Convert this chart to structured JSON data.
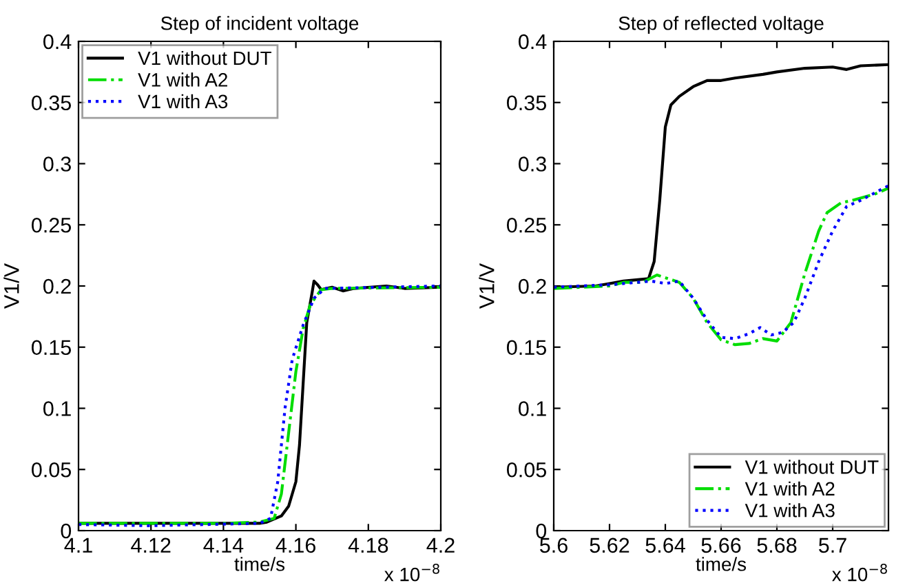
{
  "chart_data": [
    {
      "type": "line",
      "title": "Step of incident voltage",
      "xlabel": "time/s",
      "ylabel": "V1/V",
      "xlim": [
        4.1,
        4.2
      ],
      "xticks": [
        4.1,
        4.12,
        4.14,
        4.16,
        4.18,
        4.2
      ],
      "ylim": [
        0,
        0.4
      ],
      "yticks": [
        0,
        0.05,
        0.1,
        0.15,
        0.2,
        0.25,
        0.3,
        0.35,
        0.4
      ],
      "grid": false,
      "legend": "top left",
      "annotations": [
        "x 10$^{−8}$"
      ],
      "series": [
        {
          "name": "V1 without DUT",
          "color": "#000000",
          "line_style": "solid",
          "x": [
            4.1,
            4.12,
            4.14,
            4.15,
            4.152,
            4.156,
            4.158,
            4.16,
            4.161,
            4.162,
            4.163,
            4.1645,
            4.165,
            4.166,
            4.167,
            4.17,
            4.173,
            4.176,
            4.185,
            4.19,
            4.2
          ],
          "values": [
            0.006,
            0.006,
            0.006,
            0.006,
            0.007,
            0.012,
            0.02,
            0.04,
            0.07,
            0.12,
            0.17,
            0.195,
            0.204,
            0.201,
            0.197,
            0.199,
            0.196,
            0.198,
            0.2,
            0.198,
            0.199
          ]
        },
        {
          "name": "V1 with A2",
          "color": "#00dd00",
          "line_style": "dashdot",
          "x": [
            4.1,
            4.12,
            4.14,
            4.15,
            4.154,
            4.156,
            4.158,
            4.16,
            4.162,
            4.164,
            4.167,
            4.17,
            4.2
          ],
          "values": [
            0.006,
            0.006,
            0.006,
            0.007,
            0.01,
            0.03,
            0.08,
            0.13,
            0.165,
            0.185,
            0.197,
            0.198,
            0.199
          ]
        },
        {
          "name": "V1 with A3",
          "color": "#0000ff",
          "line_style": "dotted",
          "x": [
            4.1,
            4.12,
            4.15,
            4.153,
            4.155,
            4.157,
            4.159,
            4.162,
            4.165,
            4.168,
            4.2
          ],
          "values": [
            0.005,
            0.004,
            0.006,
            0.01,
            0.04,
            0.1,
            0.14,
            0.168,
            0.19,
            0.198,
            0.2
          ]
        }
      ]
    },
    {
      "type": "line",
      "title": "Step of reflected voltage",
      "xlabel": "time/s",
      "ylabel": "V1/V",
      "xlim": [
        5.6,
        5.72
      ],
      "xticks": [
        5.6,
        5.62,
        5.64,
        5.66,
        5.68,
        5.7
      ],
      "ylim": [
        0,
        0.4
      ],
      "yticks": [
        0,
        0.05,
        0.1,
        0.15,
        0.2,
        0.25,
        0.3,
        0.35,
        0.4
      ],
      "grid": false,
      "legend": "lower right",
      "annotations": [
        "x 10$^{−8}$"
      ],
      "series": [
        {
          "name": "V1 without DUT",
          "color": "#000000",
          "line_style": "solid",
          "x": [
            5.6,
            5.615,
            5.62,
            5.625,
            5.634,
            5.636,
            5.638,
            5.64,
            5.642,
            5.645,
            5.65,
            5.655,
            5.66,
            5.665,
            5.675,
            5.68,
            5.69,
            5.7,
            5.705,
            5.71,
            5.72
          ],
          "values": [
            0.199,
            0.2,
            0.202,
            0.204,
            0.206,
            0.22,
            0.27,
            0.33,
            0.348,
            0.355,
            0.363,
            0.368,
            0.368,
            0.37,
            0.373,
            0.375,
            0.378,
            0.379,
            0.377,
            0.38,
            0.381
          ]
        },
        {
          "name": "V1 with A2",
          "color": "#00dd00",
          "line_style": "dashdot",
          "x": [
            5.6,
            5.62,
            5.625,
            5.632,
            5.637,
            5.645,
            5.65,
            5.655,
            5.66,
            5.665,
            5.67,
            5.675,
            5.68,
            5.685,
            5.69,
            5.695,
            5.698,
            5.703,
            5.707,
            5.715,
            5.72
          ],
          "values": [
            0.198,
            0.2,
            0.203,
            0.203,
            0.209,
            0.203,
            0.19,
            0.17,
            0.156,
            0.152,
            0.153,
            0.157,
            0.155,
            0.17,
            0.21,
            0.245,
            0.26,
            0.268,
            0.27,
            0.275,
            0.28
          ]
        },
        {
          "name": "V1 with A3",
          "color": "#0000ff",
          "line_style": "dotted",
          "x": [
            5.6,
            5.62,
            5.635,
            5.64,
            5.645,
            5.65,
            5.655,
            5.66,
            5.665,
            5.67,
            5.674,
            5.676,
            5.678,
            5.682,
            5.686,
            5.69,
            5.695,
            5.7,
            5.705,
            5.71,
            5.72
          ],
          "values": [
            0.199,
            0.201,
            0.204,
            0.202,
            0.204,
            0.19,
            0.172,
            0.158,
            0.157,
            0.161,
            0.166,
            0.163,
            0.16,
            0.162,
            0.17,
            0.19,
            0.22,
            0.245,
            0.265,
            0.27,
            0.282
          ]
        }
      ]
    }
  ]
}
